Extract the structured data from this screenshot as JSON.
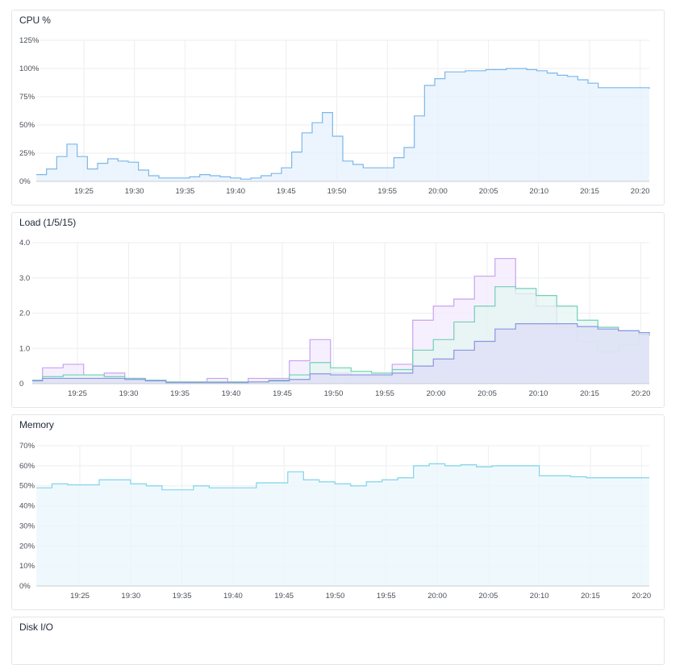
{
  "xTicks": [
    "19:25",
    "19:30",
    "19:35",
    "19:40",
    "19:45",
    "19:50",
    "19:55",
    "20:00",
    "20:05",
    "20:10",
    "20:15",
    "20:20"
  ],
  "panels": [
    {
      "id": "cpu",
      "title": "CPU %",
      "chart_data": {
        "type": "area",
        "title": "CPU %",
        "x_range": [
          "19:21",
          "20:21"
        ],
        "ylim": [
          0,
          125
        ],
        "y_ticks": [
          "0%",
          "25%",
          "50%",
          "75%",
          "100%",
          "125%"
        ],
        "y_tick_values": [
          0,
          25,
          50,
          75,
          100,
          125
        ],
        "grid": true,
        "series": [
          {
            "color": "#7cb6ea",
            "fill": "#e6f1fc",
            "points": [
              [
                0,
                6
              ],
              [
                1,
                11
              ],
              [
                2,
                22
              ],
              [
                3,
                33
              ],
              [
                4,
                22
              ],
              [
                5,
                11
              ],
              [
                6,
                16
              ],
              [
                7,
                20
              ],
              [
                8,
                18
              ],
              [
                9,
                17
              ],
              [
                10,
                10
              ],
              [
                11,
                5
              ],
              [
                12,
                3
              ],
              [
                14,
                3
              ],
              [
                15,
                4
              ],
              [
                16,
                6
              ],
              [
                17,
                5
              ],
              [
                18,
                4
              ],
              [
                19,
                3
              ],
              [
                20,
                2
              ],
              [
                21,
                3
              ],
              [
                22,
                5
              ],
              [
                23,
                7
              ],
              [
                24,
                12
              ],
              [
                25,
                26
              ],
              [
                26,
                43
              ],
              [
                27,
                52
              ],
              [
                28,
                61
              ],
              [
                29,
                40
              ],
              [
                30,
                18
              ],
              [
                31,
                15
              ],
              [
                32,
                12
              ],
              [
                34,
                12
              ],
              [
                35,
                21
              ],
              [
                36,
                30
              ],
              [
                37,
                58
              ],
              [
                38,
                85
              ],
              [
                39,
                91
              ],
              [
                40,
                97
              ],
              [
                42,
                98
              ],
              [
                44,
                99
              ],
              [
                46,
                100
              ],
              [
                48,
                99
              ],
              [
                49,
                98
              ],
              [
                50,
                96
              ],
              [
                51,
                94
              ],
              [
                52,
                93
              ],
              [
                53,
                90
              ],
              [
                54,
                87
              ],
              [
                55,
                83
              ],
              [
                57,
                83
              ],
              [
                59,
                83
              ],
              [
                60,
                82
              ]
            ]
          }
        ]
      }
    },
    {
      "id": "load",
      "title": "Load (1/5/15)",
      "chart_data": {
        "type": "area",
        "title": "Load (1/5/15)",
        "x_range": [
          "19:21",
          "20:21"
        ],
        "ylim": [
          0,
          4.0
        ],
        "y_ticks": [
          "0",
          "1.0",
          "2.0",
          "3.0",
          "4.0"
        ],
        "y_tick_values": [
          0,
          1,
          2,
          3,
          4
        ],
        "grid": true,
        "series": [
          {
            "color": "#c8a3ee",
            "fill": "#f3ebfd",
            "points": [
              [
                0,
                0.1
              ],
              [
                1,
                0.45
              ],
              [
                3,
                0.55
              ],
              [
                5,
                0.25
              ],
              [
                7,
                0.3
              ],
              [
                9,
                0.15
              ],
              [
                11,
                0.1
              ],
              [
                13,
                0.05
              ],
              [
                17,
                0.15
              ],
              [
                19,
                0.05
              ],
              [
                21,
                0.15
              ],
              [
                23,
                0.15
              ],
              [
                25,
                0.65
              ],
              [
                27,
                1.25
              ],
              [
                29,
                0.3
              ],
              [
                31,
                0.2
              ],
              [
                33,
                0.2
              ],
              [
                35,
                0.55
              ],
              [
                37,
                1.8
              ],
              [
                39,
                2.2
              ],
              [
                41,
                2.4
              ],
              [
                43,
                3.05
              ],
              [
                45,
                3.55
              ],
              [
                47,
                2.55
              ],
              [
                49,
                2.2
              ],
              [
                51,
                1.6
              ],
              [
                53,
                1.2
              ],
              [
                55,
                0.9
              ],
              [
                57,
                1.1
              ],
              [
                59,
                1.45
              ],
              [
                60,
                1.4
              ]
            ]
          },
          {
            "color": "#72cfb8",
            "fill": "#e4f6f1",
            "points": [
              [
                0,
                0.1
              ],
              [
                1,
                0.2
              ],
              [
                3,
                0.25
              ],
              [
                5,
                0.25
              ],
              [
                7,
                0.2
              ],
              [
                9,
                0.15
              ],
              [
                11,
                0.1
              ],
              [
                13,
                0.05
              ],
              [
                17,
                0.05
              ],
              [
                19,
                0.05
              ],
              [
                21,
                0.05
              ],
              [
                23,
                0.1
              ],
              [
                25,
                0.25
              ],
              [
                27,
                0.6
              ],
              [
                29,
                0.45
              ],
              [
                31,
                0.35
              ],
              [
                33,
                0.3
              ],
              [
                35,
                0.4
              ],
              [
                37,
                0.95
              ],
              [
                39,
                1.25
              ],
              [
                41,
                1.75
              ],
              [
                43,
                2.2
              ],
              [
                45,
                2.75
              ],
              [
                47,
                2.7
              ],
              [
                49,
                2.5
              ],
              [
                51,
                2.2
              ],
              [
                53,
                1.8
              ],
              [
                55,
                1.6
              ],
              [
                57,
                1.5
              ],
              [
                59,
                1.4
              ],
              [
                60,
                1.35
              ]
            ]
          },
          {
            "color": "#8e95e2",
            "fill": "#dcdff5",
            "points": [
              [
                0,
                0.08
              ],
              [
                1,
                0.15
              ],
              [
                3,
                0.15
              ],
              [
                5,
                0.15
              ],
              [
                7,
                0.15
              ],
              [
                9,
                0.12
              ],
              [
                11,
                0.08
              ],
              [
                13,
                0.03
              ],
              [
                17,
                0.03
              ],
              [
                19,
                0.03
              ],
              [
                21,
                0.05
              ],
              [
                23,
                0.08
              ],
              [
                25,
                0.12
              ],
              [
                27,
                0.28
              ],
              [
                29,
                0.25
              ],
              [
                31,
                0.25
              ],
              [
                33,
                0.25
              ],
              [
                35,
                0.3
              ],
              [
                37,
                0.5
              ],
              [
                39,
                0.7
              ],
              [
                41,
                0.95
              ],
              [
                43,
                1.2
              ],
              [
                45,
                1.55
              ],
              [
                47,
                1.7
              ],
              [
                49,
                1.7
              ],
              [
                51,
                1.7
              ],
              [
                53,
                1.62
              ],
              [
                55,
                1.55
              ],
              [
                57,
                1.5
              ],
              [
                59,
                1.45
              ],
              [
                60,
                1.42
              ]
            ]
          }
        ]
      }
    },
    {
      "id": "memory",
      "title": "Memory",
      "chart_data": {
        "type": "area",
        "title": "Memory",
        "x_range": [
          "19:21",
          "20:21"
        ],
        "ylim": [
          0,
          70
        ],
        "y_ticks": [
          "0%",
          "10%",
          "20%",
          "30%",
          "40%",
          "50%",
          "60%",
          "70%"
        ],
        "y_tick_values": [
          0,
          10,
          20,
          30,
          40,
          50,
          60,
          70
        ],
        "grid": true,
        "series": [
          {
            "color": "#7fd4ea",
            "fill": "#e9f7fc",
            "points": [
              [
                0,
                49
              ],
              [
                1,
                49
              ],
              [
                2,
                51
              ],
              [
                4,
                50.5
              ],
              [
                6,
                50.5
              ],
              [
                8,
                53
              ],
              [
                10,
                53
              ],
              [
                12,
                51
              ],
              [
                14,
                50
              ],
              [
                16,
                48
              ],
              [
                18,
                48
              ],
              [
                20,
                50
              ],
              [
                22,
                49
              ],
              [
                24,
                49
              ],
              [
                26,
                49
              ],
              [
                28,
                51.5
              ],
              [
                30,
                51.5
              ],
              [
                32,
                57
              ],
              [
                34,
                53
              ],
              [
                36,
                52
              ],
              [
                38,
                51
              ],
              [
                40,
                50
              ],
              [
                42,
                52
              ],
              [
                44,
                53
              ],
              [
                46,
                54
              ],
              [
                48,
                60
              ],
              [
                50,
                61
              ],
              [
                52,
                60
              ],
              [
                54,
                60.5
              ],
              [
                56,
                59.5
              ],
              [
                58,
                60
              ],
              [
                60,
                60
              ],
              [
                62,
                60
              ],
              [
                64,
                55
              ],
              [
                66,
                55
              ],
              [
                68,
                54.5
              ],
              [
                70,
                54
              ],
              [
                72,
                54
              ],
              [
                74,
                54
              ],
              [
                76,
                54
              ],
              [
                78,
                54
              ]
            ]
          }
        ]
      }
    },
    {
      "id": "disk",
      "title": "Disk I/O"
    }
  ]
}
